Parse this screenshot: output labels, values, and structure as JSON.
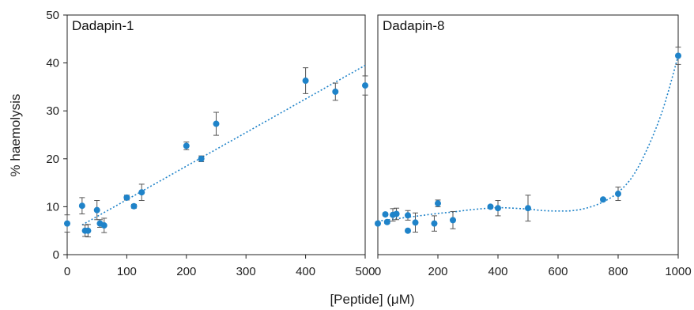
{
  "chart_data": {
    "type": "scatter",
    "ylabel": "% haemolysis",
    "xlabel": "[Peptide] (μM)",
    "ylim": [
      0,
      50
    ],
    "yticks": [
      0,
      10,
      20,
      30,
      40,
      50
    ],
    "ytick_labels": [
      "0",
      "10",
      "20",
      "30",
      "40",
      "50"
    ],
    "grid": false,
    "marker_color": "#1f83c9",
    "errorbar_color": "#555555",
    "trend_color": "#1f83c9",
    "panels": [
      {
        "title": "Dadapin-1",
        "xlim": [
          0,
          500
        ],
        "xticks": [
          0,
          100,
          200,
          300,
          400,
          500
        ],
        "xtick_labels": [
          "0",
          "100",
          "200",
          "300",
          "400",
          "500"
        ],
        "points": [
          {
            "x": 0,
            "y": 6.5,
            "err": 1.8
          },
          {
            "x": 25,
            "y": 10.2,
            "err": 1.7
          },
          {
            "x": 30,
            "y": 5.0,
            "err": 1.2
          },
          {
            "x": 35,
            "y": 5.0,
            "err": 1.3
          },
          {
            "x": 50,
            "y": 9.3,
            "err": 2.0
          },
          {
            "x": 55,
            "y": 6.5,
            "err": 0.8
          },
          {
            "x": 62,
            "y": 6.1,
            "err": 1.5
          },
          {
            "x": 100,
            "y": 11.9,
            "err": 0.5
          },
          {
            "x": 112,
            "y": 10.1,
            "err": 0.4
          },
          {
            "x": 125,
            "y": 13.0,
            "err": 1.7
          },
          {
            "x": 200,
            "y": 22.7,
            "err": 0.8
          },
          {
            "x": 225,
            "y": 20.0,
            "err": 0.6
          },
          {
            "x": 250,
            "y": 27.3,
            "err": 2.4
          },
          {
            "x": 400,
            "y": 36.3,
            "err": 2.7
          },
          {
            "x": 450,
            "y": 34.0,
            "err": 1.8
          },
          {
            "x": 500,
            "y": 35.3,
            "err": 2.0
          }
        ],
        "trendline": {
          "kind": "linear",
          "x": [
            25,
            500
          ],
          "y": [
            6.2,
            39.5
          ]
        }
      },
      {
        "title": "Dadapin-8",
        "xlim": [
          0,
          1000
        ],
        "xticks": [
          0,
          200,
          400,
          600,
          800,
          1000
        ],
        "xtick_labels": [
          "0",
          "200",
          "400",
          "600",
          "800",
          "1000"
        ],
        "points": [
          {
            "x": 0,
            "y": 6.5,
            "err": 0.3
          },
          {
            "x": 25,
            "y": 8.4,
            "err": 0.3
          },
          {
            "x": 31,
            "y": 6.8,
            "err": 0.3
          },
          {
            "x": 50,
            "y": 8.3,
            "err": 1.3
          },
          {
            "x": 62,
            "y": 8.5,
            "err": 1.2
          },
          {
            "x": 100,
            "y": 8.2,
            "err": 1.0
          },
          {
            "x": 100,
            "y": 5.0,
            "err": 0.3
          },
          {
            "x": 125,
            "y": 6.7,
            "err": 2.0
          },
          {
            "x": 188,
            "y": 6.5,
            "err": 1.6
          },
          {
            "x": 200,
            "y": 10.7,
            "err": 0.7
          },
          {
            "x": 250,
            "y": 7.2,
            "err": 1.8
          },
          {
            "x": 375,
            "y": 10.0,
            "err": 0.3
          },
          {
            "x": 400,
            "y": 9.7,
            "err": 1.6
          },
          {
            "x": 500,
            "y": 9.7,
            "err": 2.7
          },
          {
            "x": 750,
            "y": 11.5,
            "err": 0.3
          },
          {
            "x": 800,
            "y": 12.7,
            "err": 1.4
          },
          {
            "x": 1000,
            "y": 41.5,
            "err": 1.8
          }
        ],
        "trendline": {
          "kind": "polynomial",
          "x": [
            0,
            50,
            100,
            150,
            200,
            250,
            300,
            350,
            400,
            450,
            500,
            550,
            600,
            650,
            700,
            750,
            800,
            850,
            900,
            950,
            1000
          ],
          "y": [
            7.0,
            7.4,
            7.8,
            8.2,
            8.6,
            8.9,
            9.3,
            9.6,
            9.8,
            9.7,
            9.5,
            9.2,
            9.1,
            9.2,
            9.8,
            11.0,
            13.0,
            16.5,
            22.5,
            30.5,
            41.5
          ]
        }
      }
    ]
  }
}
